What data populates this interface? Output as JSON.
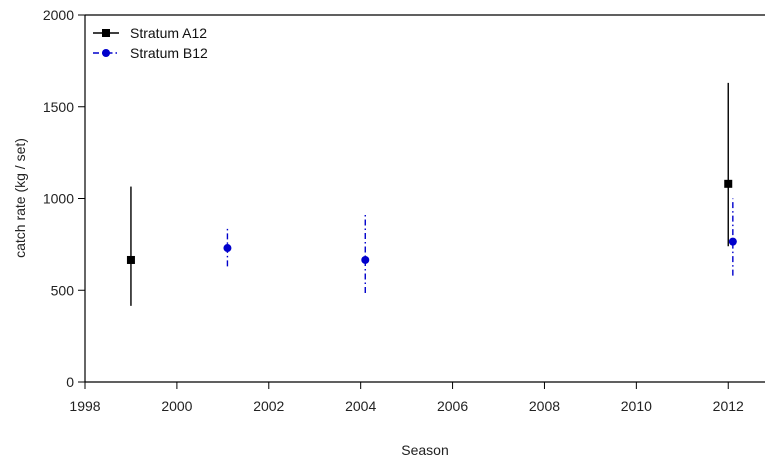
{
  "chart_data": {
    "type": "scatter",
    "xlabel": "Season",
    "ylabel": "catch rate (kg / set)",
    "xlim": [
      1998,
      2012.8
    ],
    "ylim": [
      0,
      2000
    ],
    "x_ticks": [
      1998,
      2000,
      2002,
      2004,
      2006,
      2008,
      2010,
      2012
    ],
    "y_ticks": [
      0,
      500,
      1000,
      1500,
      2000
    ],
    "grid": false,
    "legend_position": "top-left",
    "series": [
      {
        "name": "Stratum A12",
        "color": "#000000",
        "marker": "square",
        "errorbar_style": "solid",
        "points": [
          {
            "x": 1999,
            "y": 665,
            "lower": 415,
            "upper": 1065
          },
          {
            "x": 2012,
            "y": 1080,
            "lower": 740,
            "upper": 1630
          }
        ]
      },
      {
        "name": "Stratum B12",
        "color": "#0000cc",
        "marker": "circle",
        "errorbar_style": "dashdot",
        "points": [
          {
            "x": 2001.1,
            "y": 730,
            "lower": 630,
            "upper": 845
          },
          {
            "x": 2004.1,
            "y": 665,
            "lower": 485,
            "upper": 910
          },
          {
            "x": 2012.1,
            "y": 765,
            "lower": 580,
            "upper": 1000
          }
        ]
      }
    ]
  }
}
